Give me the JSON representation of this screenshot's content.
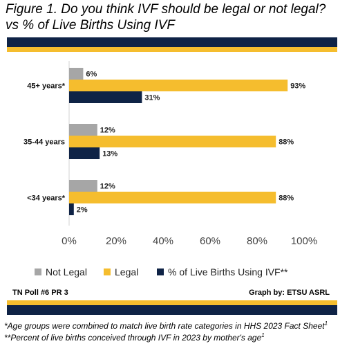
{
  "title_line1": "Figure 1. Do you think IVF should be legal or not legal?",
  "title_line2": "vs % of Live Births Using IVF",
  "footer": {
    "left": "TN Poll #6 PR 3",
    "right": "Graph by: ETSU ASRL"
  },
  "notes": [
    {
      "text": "*Age groups were combined to match live birth rate categories in HHS 2023 Fact Sheet",
      "sup": "1"
    },
    {
      "text": "**Percent of live births conceived through IVF in 2023 by mother's age",
      "sup": "1"
    }
  ],
  "colors": {
    "not_legal": "#a6a6a6",
    "legal": "#f5bd2e",
    "ivf": "#0f2346",
    "navy": "#0f2346",
    "gold": "#f5bd2e"
  },
  "chart_data": {
    "type": "bar",
    "orientation": "horizontal",
    "categories": [
      "45+ years*",
      "35-44 years",
      "<34 years*"
    ],
    "series": [
      {
        "name": "Not Legal",
        "values": [
          6,
          12,
          12
        ],
        "labels": [
          "6%",
          "12%",
          "12%"
        ],
        "color": "#a6a6a6"
      },
      {
        "name": "Legal",
        "values": [
          93,
          88,
          88
        ],
        "labels": [
          "93%",
          "88%",
          "88%"
        ],
        "color": "#f5bd2e"
      },
      {
        "name": "% of Live Births Using IVF**",
        "values": [
          31,
          13,
          2
        ],
        "labels": [
          "31%",
          "13%",
          "2%"
        ],
        "color": "#0f2346"
      }
    ],
    "xlim": [
      0,
      100
    ],
    "xticks": [
      "0%",
      "20%",
      "40%",
      "60%",
      "80%",
      "100%"
    ],
    "xtick_values": [
      0,
      20,
      40,
      60,
      80,
      100
    ],
    "grid": false,
    "legend_position": "bottom"
  }
}
